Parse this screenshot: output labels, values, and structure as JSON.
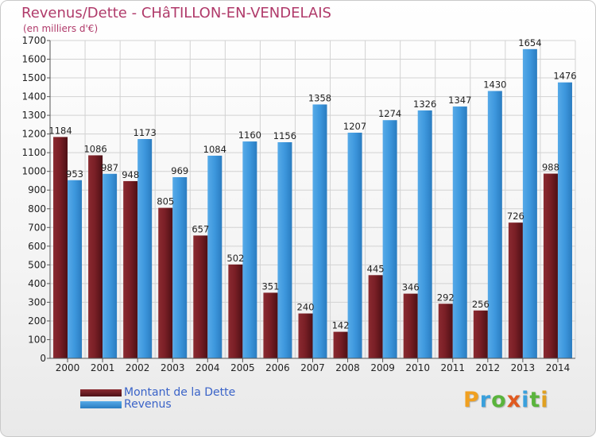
{
  "title": "Revenus/Dette - CHâTILLON-EN-VENDELAIS",
  "subtitle": "(en milliers d'€)",
  "brand": {
    "text": "Proxiti",
    "letter_colors": [
      "#f0a020",
      "#3aa0dc",
      "#5ab43c",
      "#e05a20",
      "#3aa0dc",
      "#5ab43c",
      "#e0a020"
    ]
  },
  "colors": {
    "dette": "#6b1a20",
    "revenus": "#3d97dd",
    "title": "#b03a6a",
    "legend_text": "#3a63c8"
  },
  "chart_data": {
    "type": "bar",
    "title": "Revenus/Dette - CHâTILLON-EN-VENDELAIS",
    "subtitle": "(en milliers d'€)",
    "categories": [
      "2000",
      "2001",
      "2002",
      "2003",
      "2004",
      "2005",
      "2006",
      "2007",
      "2008",
      "2009",
      "2010",
      "2011",
      "2012",
      "2013",
      "2014"
    ],
    "series": [
      {
        "name": "Montant de la Dette",
        "values": [
          1184,
          1086,
          948,
          805,
          657,
          502,
          351,
          240,
          142,
          445,
          346,
          292,
          256,
          726,
          988
        ]
      },
      {
        "name": "Revenus",
        "values": [
          953,
          987,
          1173,
          969,
          1084,
          1160,
          1156,
          1358,
          1207,
          1274,
          1326,
          1347,
          1430,
          1654,
          1476
        ]
      }
    ],
    "ylim": [
      0,
      1700
    ],
    "yticks": [
      0,
      100,
      200,
      300,
      400,
      500,
      600,
      700,
      800,
      900,
      1000,
      1100,
      1200,
      1300,
      1400,
      1500,
      1600,
      1700
    ],
    "grid": true,
    "legend_position": "bottom-left"
  }
}
